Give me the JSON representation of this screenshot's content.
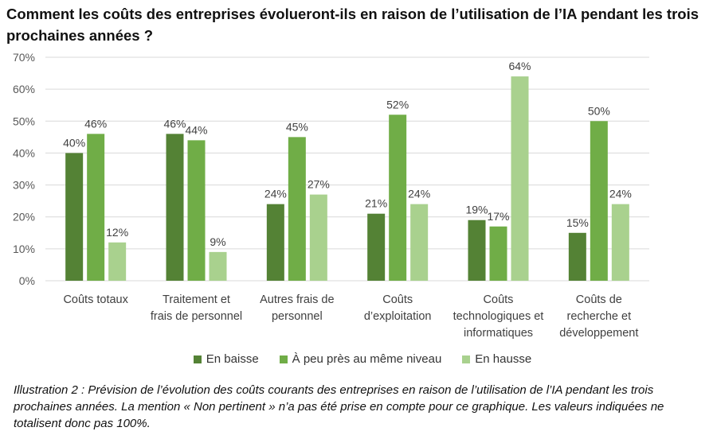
{
  "title": "Comment les coûts des entreprises évolueront-ils en raison de l’utilisation de l’IA pendant les trois prochaines années ?",
  "caption": "Illustration 2 : Prévision de l’évolution des coûts courants des entreprises en raison de l’utilisation de l’IA pendant les trois prochaines années. La mention « Non pertinent » n’a pas été prise en compte pour ce graphique. Les valeurs indiquées ne totalisent donc pas 100%.",
  "chart_data": {
    "type": "bar",
    "categories": [
      [
        "Coûts totaux"
      ],
      [
        "Traitement et",
        "frais de personnel"
      ],
      [
        "Autres frais de",
        "personnel"
      ],
      [
        "Coûts",
        "d’exploitation"
      ],
      [
        "Coûts",
        "technologiques et",
        "informatiques"
      ],
      [
        "Coûts de",
        "recherche et",
        "développement"
      ]
    ],
    "series": [
      {
        "name": "En baisse",
        "color": "#548235",
        "values": [
          40,
          46,
          24,
          21,
          19,
          15
        ]
      },
      {
        "name": "À peu près au même niveau",
        "color": "#70AD47",
        "values": [
          46,
          44,
          45,
          52,
          17,
          50
        ]
      },
      {
        "name": "En hausse",
        "color": "#A9D18E",
        "values": [
          12,
          9,
          27,
          24,
          64,
          24
        ]
      }
    ],
    "ylim": [
      0,
      70
    ],
    "yticks": [
      "0%",
      "10%",
      "20%",
      "30%",
      "40%",
      "50%",
      "60%",
      "70%"
    ],
    "value_suffix": "%",
    "grid": true,
    "legend_position": "bottom"
  }
}
